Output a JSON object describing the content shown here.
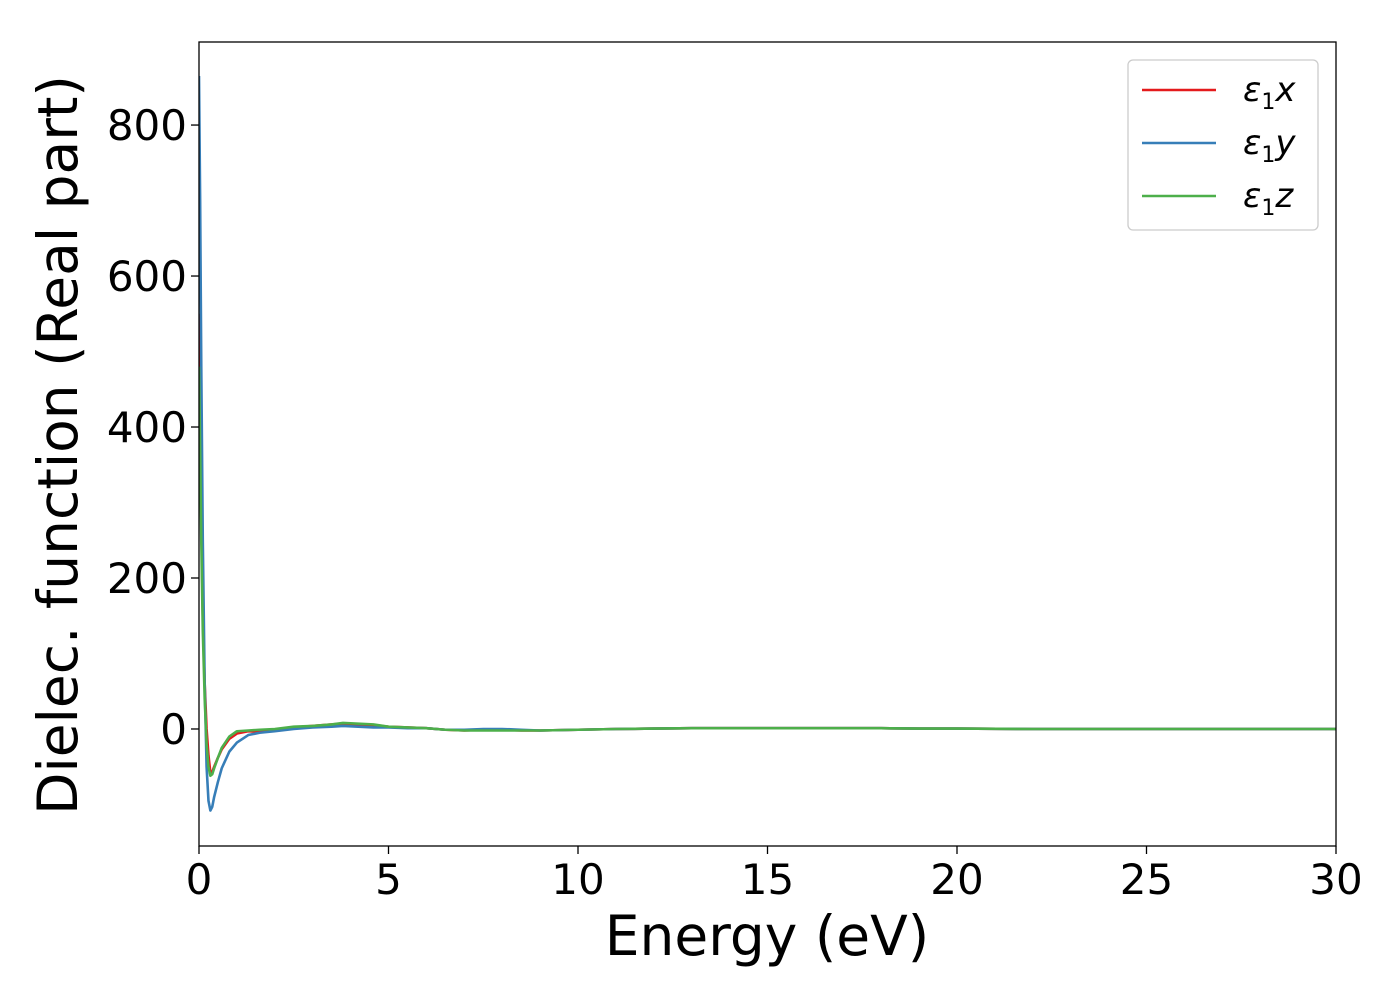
{
  "chart_data": {
    "type": "line",
    "title": "",
    "xlabel": "Energy (eV)",
    "ylabel": "Dielec. function (Real part)",
    "xlim": [
      0,
      30
    ],
    "ylim": [
      -155,
      910
    ],
    "xticks": [
      0,
      5,
      10,
      15,
      20,
      25,
      30
    ],
    "yticks": [
      0,
      200,
      400,
      600,
      800
    ],
    "grid": false,
    "legend_position": "top-right",
    "series": [
      {
        "name": "ε1x",
        "legend": {
          "base": "ε",
          "sub": "1",
          "suffix": "x"
        },
        "color": "#e41a1c",
        "x": [
          0,
          0.03,
          0.06,
          0.1,
          0.15,
          0.2,
          0.25,
          0.3,
          0.35,
          0.4,
          0.5,
          0.6,
          0.8,
          1.0,
          1.3,
          1.6,
          2.0,
          2.5,
          3.0,
          3.5,
          3.8,
          4.2,
          4.6,
          5.0,
          5.5,
          6.0,
          6.5,
          7.0,
          7.5,
          8.0,
          8.5,
          9.0,
          10,
          11,
          12,
          13,
          14,
          15,
          16,
          17,
          18,
          19,
          20,
          22,
          24,
          26,
          28,
          30
        ],
        "y": [
          550,
          420,
          280,
          150,
          60,
          0,
          -35,
          -58,
          -57,
          -50,
          -38,
          -27,
          -13,
          -6,
          -3,
          -4,
          -1,
          2,
          4,
          6,
          7,
          6,
          5,
          3,
          2,
          1,
          -1,
          -2,
          -1,
          -1,
          -2,
          -2,
          -1,
          0,
          0.5,
          1,
          1,
          1,
          1,
          1,
          1,
          0.5,
          0.5,
          0,
          0,
          0,
          0,
          0
        ]
      },
      {
        "name": "ε1y",
        "legend": {
          "base": "ε",
          "sub": "1",
          "suffix": "y"
        },
        "color": "#377eb8",
        "x": [
          0,
          0.03,
          0.06,
          0.1,
          0.15,
          0.2,
          0.25,
          0.3,
          0.35,
          0.4,
          0.5,
          0.6,
          0.8,
          1.0,
          1.3,
          1.6,
          2.0,
          2.5,
          3.0,
          3.5,
          3.8,
          4.2,
          4.6,
          5.0,
          5.5,
          6.0,
          6.5,
          7.0,
          7.5,
          8.0,
          8.5,
          9.0,
          10,
          11,
          12,
          13,
          14,
          15,
          16,
          17,
          18,
          19,
          20,
          22,
          24,
          26,
          28,
          30
        ],
        "y": [
          865,
          700,
          480,
          250,
          60,
          -50,
          -95,
          -108,
          -103,
          -90,
          -70,
          -52,
          -30,
          -18,
          -8,
          -5,
          -3,
          0,
          2,
          3,
          4,
          3,
          2,
          2,
          1,
          1,
          -1,
          -1,
          0,
          0,
          -1,
          -2,
          -1,
          0,
          0.5,
          1,
          1,
          1,
          1,
          1,
          1,
          0.5,
          0.5,
          0,
          0,
          0,
          0,
          0
        ]
      },
      {
        "name": "ε1z",
        "legend": {
          "base": "ε",
          "sub": "1",
          "suffix": "z"
        },
        "color": "#4daf4a",
        "x": [
          0,
          0.03,
          0.06,
          0.1,
          0.15,
          0.2,
          0.25,
          0.3,
          0.35,
          0.4,
          0.5,
          0.6,
          0.8,
          1.0,
          1.3,
          1.6,
          2.0,
          2.5,
          3.0,
          3.5,
          3.8,
          4.2,
          4.6,
          5.0,
          5.5,
          6.0,
          6.5,
          7.0,
          7.5,
          8.0,
          8.5,
          9.0,
          10,
          11,
          12,
          13,
          14,
          15,
          16,
          17,
          18,
          19,
          20,
          22,
          24,
          26,
          28,
          30
        ],
        "y": [
          480,
          370,
          250,
          130,
          40,
          -20,
          -50,
          -62,
          -60,
          -52,
          -38,
          -25,
          -10,
          -3,
          -2,
          -1,
          0,
          3,
          4,
          6,
          8,
          7,
          6,
          3,
          2,
          1,
          -1,
          -2,
          -2,
          -2,
          -2,
          -2,
          -1,
          0,
          0.5,
          1,
          1,
          1,
          1,
          1,
          1,
          0.5,
          0.5,
          0,
          0,
          0,
          0,
          0
        ]
      }
    ]
  }
}
